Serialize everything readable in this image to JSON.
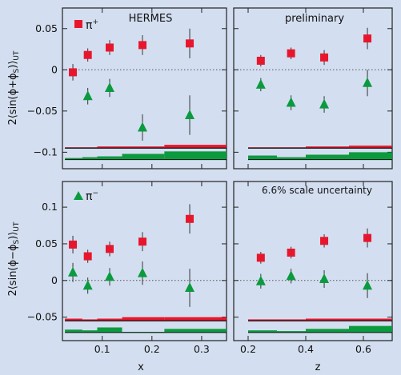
{
  "colors": {
    "background": "#d3dff0",
    "pi_plus": "#e8162d",
    "pi_minus": "#0c9a3e",
    "systematic_red": "#e8162d",
    "systematic_green": "#0c9a3e"
  },
  "y_axis_labels": {
    "top": "2⟨sin(ϕ+ϕS)⟩UT",
    "bottom": "2⟨sin(ϕ−ϕS)⟩UT"
  },
  "x_axis_labels": {
    "left": "x",
    "right": "z"
  },
  "panel_texts": {
    "hermes": "HERMES",
    "preliminary": "preliminary",
    "scale_uncertainty": "6.6% scale uncertainty"
  },
  "legend": {
    "pi_plus": "π+",
    "pi_minus": "π−"
  },
  "chart_data": [
    {
      "type": "scatter",
      "panel": "top-left",
      "xlim": [
        0.02,
        0.35
      ],
      "ylim": [
        -0.12,
        0.075
      ],
      "xticks": [
        0.1,
        0.2,
        0.3
      ],
      "yticks": [
        -0.1,
        -0.05,
        0,
        0.05
      ],
      "ytick_labels": [
        "−0.1",
        "−0.05",
        "0",
        "0.05"
      ],
      "xtick_labels": [],
      "series": [
        {
          "name": "π+",
          "x": [
            0.041,
            0.071,
            0.115,
            0.181,
            0.276
          ],
          "y": [
            -0.003,
            0.018,
            0.027,
            0.03,
            0.032
          ],
          "err": [
            0.01,
            0.008,
            0.009,
            0.012,
            0.018
          ]
        },
        {
          "x": [
            0.041,
            0.071,
            0.115,
            0.181,
            0.276
          ],
          "y": [
            null,
            -0.032,
            -0.022,
            -0.07,
            -0.055
          ],
          "err": [
            null,
            0.01,
            0.011,
            0.016,
            0.024
          ]
        }
      ],
      "systematic_red": [
        {
          "x0": 0.025,
          "x1": 0.06,
          "upper": -0.094
        },
        {
          "x0": 0.06,
          "x1": 0.09,
          "upper": -0.094
        },
        {
          "x0": 0.09,
          "x1": 0.14,
          "upper": -0.093
        },
        {
          "x0": 0.14,
          "x1": 0.225,
          "upper": -0.093
        },
        {
          "x0": 0.225,
          "x1": 0.35,
          "upper": -0.091
        }
      ],
      "red_base": -0.095,
      "systematic_green": [
        {
          "x0": 0.025,
          "x1": 0.06,
          "upper": -0.107
        },
        {
          "x0": 0.06,
          "x1": 0.09,
          "upper": -0.106
        },
        {
          "x0": 0.09,
          "x1": 0.14,
          "upper": -0.105
        },
        {
          "x0": 0.14,
          "x1": 0.225,
          "upper": -0.102
        },
        {
          "x0": 0.225,
          "x1": 0.35,
          "upper": -0.099
        }
      ],
      "green_base": -0.109
    },
    {
      "type": "scatter",
      "panel": "top-right",
      "xlim": [
        0.15,
        0.7
      ],
      "ylim": [
        -0.12,
        0.075
      ],
      "xticks": [
        0.2,
        0.4,
        0.6
      ],
      "yticks": [
        -0.1,
        -0.05,
        0,
        0.05
      ],
      "ytick_labels": [],
      "xtick_labels": [],
      "series": [
        {
          "name": "π+",
          "x": [
            0.244,
            0.349,
            0.464,
            0.614
          ],
          "y": [
            0.011,
            0.02,
            0.015,
            0.038
          ],
          "err": [
            0.007,
            0.007,
            0.009,
            0.013
          ]
        },
        {
          "x": [
            0.244,
            0.349,
            0.464,
            0.614
          ],
          "y": [
            -0.018,
            -0.04,
            -0.042,
            -0.016
          ],
          "err": [
            0.008,
            0.009,
            0.01,
            0.016
          ]
        }
      ],
      "systematic_red": [
        {
          "x0": 0.2,
          "x1": 0.3,
          "upper": -0.094
        },
        {
          "x0": 0.3,
          "x1": 0.4,
          "upper": -0.094
        },
        {
          "x0": 0.4,
          "x1": 0.55,
          "upper": -0.093
        },
        {
          "x0": 0.55,
          "x1": 0.7,
          "upper": -0.092
        }
      ],
      "red_base": -0.095,
      "systematic_green": [
        {
          "x0": 0.2,
          "x1": 0.3,
          "upper": -0.104
        },
        {
          "x0": 0.3,
          "x1": 0.4,
          "upper": -0.106
        },
        {
          "x0": 0.4,
          "x1": 0.55,
          "upper": -0.103
        },
        {
          "x0": 0.55,
          "x1": 0.7,
          "upper": -0.1
        }
      ],
      "green_base": -0.109
    },
    {
      "type": "scatter",
      "panel": "bottom-left",
      "xlim": [
        0.02,
        0.35
      ],
      "ylim": [
        -0.082,
        0.135
      ],
      "xticks": [
        0.1,
        0.2,
        0.3
      ],
      "yticks": [
        -0.05,
        0,
        0.05,
        0.1
      ],
      "ytick_labels": [
        "−0.05",
        "0",
        "0.05",
        "0.1"
      ],
      "xtick_labels": [
        "0.1",
        "0.2",
        "0.3"
      ],
      "series": [
        {
          "name": "π+",
          "x": [
            0.041,
            0.071,
            0.115,
            0.181,
            0.276
          ],
          "y": [
            0.049,
            0.033,
            0.043,
            0.053,
            0.084
          ],
          "err": [
            0.012,
            0.009,
            0.01,
            0.013,
            0.02
          ]
        },
        {
          "name": "π−",
          "x": [
            0.041,
            0.071,
            0.115,
            0.181,
            0.276
          ],
          "y": [
            0.011,
            -0.007,
            0.005,
            0.01,
            -0.01
          ],
          "err": [
            0.013,
            0.011,
            0.012,
            0.016,
            0.026
          ]
        }
      ],
      "systematic_red": [
        {
          "x0": 0.025,
          "x1": 0.06,
          "upper": -0.052
        },
        {
          "x0": 0.06,
          "x1": 0.09,
          "upper": -0.053
        },
        {
          "x0": 0.09,
          "x1": 0.14,
          "upper": -0.052
        },
        {
          "x0": 0.14,
          "x1": 0.225,
          "upper": -0.05
        },
        {
          "x0": 0.225,
          "x1": 0.35,
          "upper": -0.05
        }
      ],
      "red_base": -0.055,
      "systematic_green": [
        {
          "x0": 0.025,
          "x1": 0.06,
          "upper": -0.067
        },
        {
          "x0": 0.06,
          "x1": 0.09,
          "upper": -0.068
        },
        {
          "x0": 0.09,
          "x1": 0.14,
          "upper": -0.064
        },
        {
          "x0": 0.14,
          "x1": 0.225,
          "upper": -0.07
        },
        {
          "x0": 0.225,
          "x1": 0.35,
          "upper": -0.066
        }
      ],
      "green_base": -0.071
    },
    {
      "type": "scatter",
      "panel": "bottom-right",
      "xlim": [
        0.15,
        0.7
      ],
      "ylim": [
        -0.082,
        0.135
      ],
      "xticks": [
        0.2,
        0.4,
        0.6
      ],
      "yticks": [
        -0.05,
        0,
        0.05,
        0.1
      ],
      "ytick_labels": [],
      "xtick_labels": [
        "0.2",
        "0.4",
        "0.6"
      ],
      "series": [
        {
          "name": "π+",
          "x": [
            0.244,
            0.349,
            0.464,
            0.614
          ],
          "y": [
            0.031,
            0.038,
            0.054,
            0.058
          ],
          "err": [
            0.008,
            0.008,
            0.009,
            0.013
          ]
        },
        {
          "name": "π−",
          "x": [
            0.244,
            0.349,
            0.464,
            0.614
          ],
          "y": [
            -0.001,
            0.006,
            0.002,
            -0.007
          ],
          "err": [
            0.01,
            0.01,
            0.012,
            0.017
          ]
        }
      ],
      "systematic_red": [
        {
          "x0": 0.2,
          "x1": 0.3,
          "upper": -0.053
        },
        {
          "x0": 0.3,
          "x1": 0.4,
          "upper": -0.053
        },
        {
          "x0": 0.4,
          "x1": 0.55,
          "upper": -0.052
        },
        {
          "x0": 0.55,
          "x1": 0.7,
          "upper": -0.052
        }
      ],
      "red_base": -0.055,
      "systematic_green": [
        {
          "x0": 0.2,
          "x1": 0.3,
          "upper": -0.068
        },
        {
          "x0": 0.3,
          "x1": 0.4,
          "upper": -0.069
        },
        {
          "x0": 0.4,
          "x1": 0.55,
          "upper": -0.066
        },
        {
          "x0": 0.55,
          "x1": 0.7,
          "upper": -0.062
        }
      ],
      "green_base": -0.071
    }
  ]
}
